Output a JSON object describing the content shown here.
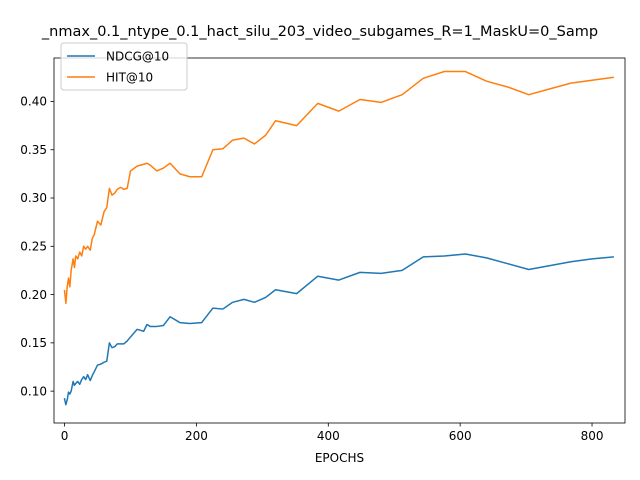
{
  "chart_data": {
    "type": "line",
    "title": "_nmax_0.1_ntype_0.1_hact_silu_203_video_subgames_R=1_MaskU=0_Samp",
    "xlabel": "EPOCHS",
    "ylabel": "",
    "xlim": [
      -16,
      850
    ],
    "ylim": [
      0.067,
      0.445
    ],
    "xticks": [
      0,
      200,
      400,
      600,
      800
    ],
    "yticks": [
      0.1,
      0.15,
      0.2,
      0.25,
      0.3,
      0.35,
      0.4
    ],
    "xtick_labels": [
      "0",
      "200",
      "400",
      "600",
      "800"
    ],
    "ytick_labels": [
      "0.10",
      "0.15",
      "0.20",
      "0.25",
      "0.30",
      "0.35",
      "0.40"
    ],
    "grid": false,
    "legend_position": "top-left",
    "series": [
      {
        "name": "NDCG@10",
        "color": "#1f77b4",
        "x": [
          0,
          2,
          4,
          6,
          8,
          10,
          13,
          15,
          17,
          20,
          23,
          26,
          29,
          32,
          35,
          39,
          42,
          45,
          50,
          55,
          60,
          64,
          68,
          72,
          76,
          80,
          85,
          90,
          95,
          100,
          110,
          120,
          125,
          130,
          140,
          150,
          160,
          175,
          190,
          208,
          225,
          240,
          255,
          272,
          288,
          305,
          320,
          352,
          384,
          416,
          448,
          480,
          512,
          544,
          576,
          608,
          640,
          672,
          704,
          736,
          768,
          800,
          832
        ],
        "y": [
          0.092,
          0.086,
          0.091,
          0.099,
          0.097,
          0.1,
          0.11,
          0.106,
          0.108,
          0.11,
          0.107,
          0.112,
          0.115,
          0.112,
          0.117,
          0.111,
          0.116,
          0.12,
          0.127,
          0.128,
          0.13,
          0.131,
          0.15,
          0.145,
          0.146,
          0.149,
          0.149,
          0.149,
          0.152,
          0.156,
          0.164,
          0.162,
          0.169,
          0.167,
          0.167,
          0.168,
          0.177,
          0.171,
          0.17,
          0.171,
          0.186,
          0.185,
          0.192,
          0.195,
          0.192,
          0.197,
          0.205,
          0.201,
          0.219,
          0.215,
          0.223,
          0.222,
          0.225,
          0.239,
          0.24,
          0.242,
          0.238,
          0.232,
          0.226,
          0.23,
          0.234,
          0.237,
          0.239
        ]
      },
      {
        "name": "HIT@10",
        "color": "#ff7f0e",
        "x": [
          0,
          2,
          4,
          6,
          8,
          10,
          13,
          15,
          17,
          20,
          23,
          26,
          29,
          32,
          35,
          39,
          42,
          45,
          50,
          55,
          60,
          64,
          68,
          72,
          76,
          80,
          85,
          90,
          95,
          100,
          110,
          120,
          125,
          130,
          140,
          150,
          160,
          175,
          190,
          208,
          225,
          240,
          255,
          272,
          288,
          305,
          320,
          352,
          384,
          416,
          448,
          480,
          512,
          544,
          576,
          608,
          640,
          672,
          704,
          736,
          768,
          800,
          832
        ],
        "y": [
          0.204,
          0.191,
          0.208,
          0.217,
          0.208,
          0.225,
          0.237,
          0.228,
          0.24,
          0.237,
          0.244,
          0.24,
          0.25,
          0.247,
          0.25,
          0.246,
          0.258,
          0.262,
          0.276,
          0.272,
          0.286,
          0.29,
          0.31,
          0.303,
          0.305,
          0.309,
          0.311,
          0.309,
          0.31,
          0.328,
          0.333,
          0.335,
          0.336,
          0.334,
          0.328,
          0.331,
          0.336,
          0.325,
          0.322,
          0.322,
          0.35,
          0.351,
          0.36,
          0.362,
          0.356,
          0.365,
          0.38,
          0.375,
          0.398,
          0.39,
          0.402,
          0.399,
          0.407,
          0.424,
          0.431,
          0.431,
          0.421,
          0.415,
          0.407,
          0.413,
          0.419,
          0.422,
          0.425
        ]
      }
    ]
  }
}
